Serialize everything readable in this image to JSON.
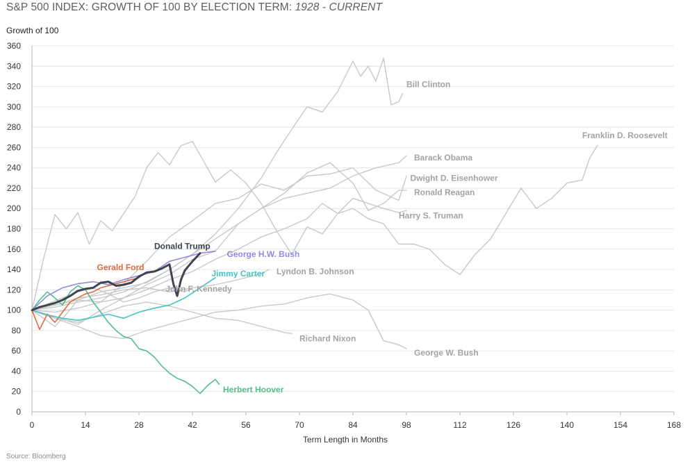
{
  "title": {
    "main": "S&P 500 INDEX: GROWTH OF 100 BY ELECTION TERM: ",
    "range": "1928 - CURRENT"
  },
  "source": "Source: Bloomberg",
  "chart_data": {
    "type": "line",
    "title": "S&P 500 INDEX: GROWTH OF 100 BY ELECTION TERM: 1928 - CURRENT",
    "xlabel": "Term Length in Months",
    "ylabel": "Growth of 100",
    "xlim": [
      0,
      168
    ],
    "ylim": [
      0,
      360
    ],
    "xticks": [
      0,
      14,
      28,
      42,
      56,
      70,
      84,
      98,
      112,
      126,
      140,
      154,
      168
    ],
    "yticks": [
      0,
      20,
      40,
      60,
      80,
      100,
      120,
      140,
      160,
      180,
      200,
      220,
      240,
      260,
      280,
      300,
      320,
      340,
      360
    ],
    "grid": "horizontal",
    "colors": {
      "gray": "#c8c8c8",
      "gray_label": "#a3a3a3",
      "trump": "#3d4450",
      "ford": "#e06a3e",
      "bush_hw": "#8f8ae0",
      "carter": "#47c1c4",
      "hoover": "#4fbf8c",
      "axis": "#b5b5b5",
      "gridline": "#e4e4e4"
    },
    "series": [
      {
        "name": "Franklin D. Roosevelt",
        "color": "gray",
        "x": [
          0,
          3,
          6,
          9,
          12,
          15,
          18,
          21,
          24,
          27,
          30,
          33,
          36,
          39,
          42,
          45,
          48,
          52,
          56,
          60,
          64,
          68,
          72,
          76,
          80,
          84,
          88,
          92,
          96,
          100,
          104,
          108,
          112,
          116,
          120,
          124,
          128,
          132,
          136,
          140,
          144,
          146,
          148
        ],
        "y": [
          100,
          150,
          194,
          180,
          196,
          165,
          188,
          178,
          195,
          212,
          240,
          255,
          243,
          262,
          266,
          246,
          226,
          238,
          225,
          205,
          178,
          155,
          182,
          175,
          195,
          200,
          190,
          185,
          165,
          165,
          160,
          145,
          135,
          155,
          170,
          195,
          220,
          200,
          210,
          225,
          228,
          250,
          262
        ]
      },
      {
        "name": "Bill Clinton",
        "color": "gray",
        "x": [
          0,
          6,
          12,
          18,
          24,
          30,
          36,
          42,
          48,
          54,
          60,
          64,
          68,
          72,
          76,
          80,
          84,
          86,
          88,
          90,
          92,
          94,
          96,
          97
        ],
        "y": [
          100,
          103,
          108,
          112,
          118,
          128,
          140,
          155,
          175,
          200,
          230,
          255,
          278,
          300,
          295,
          315,
          345,
          330,
          340,
          325,
          348,
          302,
          305,
          313
        ]
      },
      {
        "name": "Barack Obama",
        "color": "gray",
        "x": [
          0,
          3,
          6,
          9,
          12,
          18,
          24,
          30,
          36,
          42,
          48,
          54,
          60,
          66,
          72,
          78,
          84,
          90,
          96,
          98
        ],
        "y": [
          100,
          92,
          84,
          96,
          110,
          118,
          122,
          127,
          140,
          155,
          170,
          185,
          200,
          210,
          215,
          220,
          232,
          240,
          245,
          252
        ]
      },
      {
        "name": "Dwight D. Eisenhower",
        "color": "gray",
        "x": [
          0,
          6,
          12,
          18,
          24,
          30,
          36,
          42,
          48,
          54,
          60,
          66,
          72,
          78,
          84,
          90,
          96,
          98
        ],
        "y": [
          100,
          98,
          102,
          108,
          126,
          148,
          172,
          188,
          205,
          210,
          224,
          218,
          232,
          234,
          240,
          218,
          208,
          232
        ]
      },
      {
        "name": "Ronald Reagan",
        "color": "gray",
        "x": [
          0,
          6,
          12,
          18,
          24,
          30,
          36,
          42,
          48,
          54,
          60,
          66,
          72,
          78,
          84,
          88,
          92,
          96,
          98
        ],
        "y": [
          100,
          94,
          86,
          100,
          112,
          125,
          135,
          150,
          158,
          185,
          200,
          215,
          235,
          245,
          225,
          198,
          205,
          218,
          218
        ]
      },
      {
        "name": "Harry S. Truman",
        "color": "gray",
        "x": [
          0,
          6,
          12,
          18,
          24,
          30,
          36,
          42,
          48,
          54,
          60,
          66,
          72,
          76,
          80,
          84,
          88,
          92,
          96,
          98
        ],
        "y": [
          100,
          105,
          110,
          108,
          112,
          120,
          130,
          138,
          150,
          160,
          172,
          180,
          190,
          205,
          195,
          210,
          205,
          200,
          196,
          198
        ]
      },
      {
        "name": "Lyndon B. Johnson",
        "color": "gray",
        "x": [
          0,
          6,
          12,
          18,
          24,
          30,
          36,
          42,
          48,
          54,
          60,
          62
        ],
        "y": [
          100,
          105,
          112,
          115,
          120,
          122,
          118,
          122,
          125,
          130,
          136,
          140
        ]
      },
      {
        "name": "Richard Nixon",
        "color": "gray",
        "x": [
          0,
          6,
          12,
          18,
          24,
          30,
          36,
          42,
          48,
          54,
          60,
          66,
          68
        ],
        "y": [
          100,
          92,
          88,
          96,
          104,
          108,
          104,
          98,
          92,
          90,
          84,
          78,
          77
        ]
      },
      {
        "name": "George W. Bush",
        "color": "gray",
        "x": [
          0,
          6,
          12,
          18,
          24,
          30,
          36,
          42,
          48,
          54,
          60,
          66,
          72,
          78,
          84,
          88,
          92,
          94,
          96,
          98
        ],
        "y": [
          100,
          92,
          84,
          75,
          72,
          80,
          86,
          92,
          98,
          100,
          104,
          106,
          112,
          116,
          110,
          100,
          70,
          68,
          66,
          62
        ]
      },
      {
        "name": "John F. Kennedy",
        "color": "gray",
        "x": [
          0,
          4,
          8,
          12,
          16,
          20,
          24,
          28,
          32,
          36,
          40,
          42
        ],
        "y": [
          100,
          106,
          112,
          118,
          122,
          116,
          108,
          112,
          118,
          122,
          118,
          122
        ]
      },
      {
        "name": "Herbert Hoover",
        "color": "hoover",
        "x": [
          0,
          2,
          4,
          6,
          8,
          10,
          12,
          14,
          16,
          18,
          20,
          22,
          24,
          26,
          28,
          30,
          32,
          34,
          36,
          38,
          40,
          42,
          44,
          46,
          48,
          49
        ],
        "y": [
          100,
          110,
          118,
          112,
          105,
          118,
          124,
          120,
          108,
          98,
          88,
          80,
          74,
          72,
          62,
          60,
          54,
          45,
          38,
          33,
          30,
          25,
          18,
          26,
          32,
          27
        ]
      },
      {
        "name": "Gerald Ford",
        "color": "ford",
        "x": [
          0,
          2,
          4,
          6,
          8,
          10,
          12,
          14,
          16,
          18,
          20,
          22,
          24,
          26,
          28,
          29
        ],
        "y": [
          100,
          81,
          96,
          88,
          98,
          108,
          112,
          116,
          118,
          122,
          124,
          126,
          128,
          130,
          132,
          135
        ]
      },
      {
        "name": "George H.W. Bush",
        "color": "bush_hw",
        "x": [
          0,
          4,
          8,
          12,
          16,
          20,
          24,
          28,
          32,
          36,
          40,
          44,
          48
        ],
        "y": [
          100,
          114,
          122,
          126,
          128,
          125,
          130,
          134,
          138,
          148,
          152,
          156,
          158
        ]
      },
      {
        "name": "Jimmy Carter",
        "color": "carter",
        "x": [
          0,
          4,
          8,
          12,
          16,
          20,
          24,
          28,
          32,
          36,
          40,
          44,
          48
        ],
        "y": [
          100,
          95,
          92,
          90,
          93,
          96,
          92,
          98,
          102,
          105,
          112,
          122,
          132
        ]
      },
      {
        "name": "Donald Trump",
        "color": "trump",
        "x": [
          0,
          2,
          4,
          6,
          8,
          10,
          12,
          14,
          16,
          18,
          20,
          22,
          24,
          26,
          28,
          30,
          32,
          34,
          36,
          37,
          38,
          39,
          40,
          42,
          44
        ],
        "y": [
          100,
          103,
          105,
          107,
          110,
          114,
          119,
          121,
          122,
          127,
          128,
          124,
          125,
          127,
          133,
          137,
          138,
          141,
          145,
          126,
          114,
          130,
          139,
          148,
          156
        ]
      }
    ],
    "labels": [
      {
        "name": "Bill Clinton",
        "x": 98,
        "y": 322,
        "color": "gray_label"
      },
      {
        "name": "Franklin D. Roosevelt",
        "x": 144,
        "y": 272,
        "color": "gray_label"
      },
      {
        "name": "Barack Obama",
        "x": 100,
        "y": 250,
        "color": "gray_label"
      },
      {
        "name": "Dwight D. Eisenhower",
        "x": 99,
        "y": 230,
        "color": "gray_label"
      },
      {
        "name": "Ronald Reagan",
        "x": 100,
        "y": 216,
        "color": "gray_label"
      },
      {
        "name": "Harry S. Truman",
        "x": 96,
        "y": 193,
        "color": "gray_label"
      },
      {
        "name": "Donald Trump",
        "x": 32,
        "y": 163,
        "color": "trump"
      },
      {
        "name": "George H.W. Bush",
        "x": 51,
        "y": 155,
        "color": "bush_hw"
      },
      {
        "name": "Gerald Ford",
        "x": 17,
        "y": 142,
        "color": "ford"
      },
      {
        "name": "Lyndon B. Johnson",
        "x": 64,
        "y": 138,
        "color": "gray_label"
      },
      {
        "name": "Jimmy Carter",
        "x": 47,
        "y": 136,
        "color": "carter"
      },
      {
        "name": "John F. Kennedy",
        "x": 35,
        "y": 121,
        "color": "gray_label"
      },
      {
        "name": "Richard Nixon",
        "x": 70,
        "y": 72,
        "color": "gray_label"
      },
      {
        "name": "George W. Bush",
        "x": 100,
        "y": 58,
        "color": "gray_label"
      },
      {
        "name": "Herbert Hoover",
        "x": 50,
        "y": 22,
        "color": "hoover"
      }
    ]
  }
}
